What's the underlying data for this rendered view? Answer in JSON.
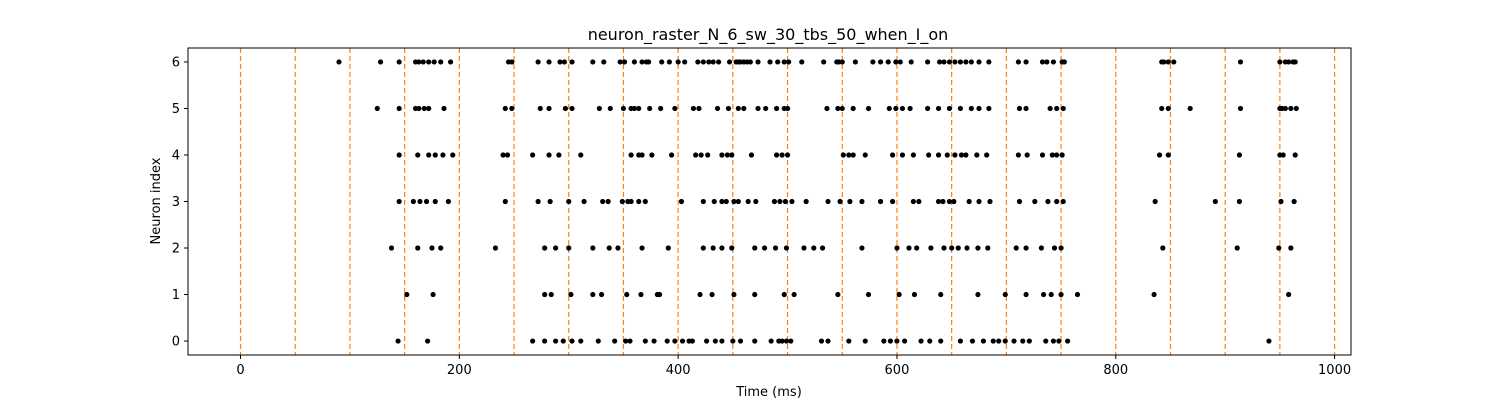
{
  "chart_data": {
    "type": "scatter",
    "title": "neuron_raster_N_6_sw_30_tbs_50_when_I_on",
    "xlabel": "Time (ms)",
    "ylabel": "Neuron index",
    "xlim": [
      -48,
      1015
    ],
    "ylim": [
      -0.3,
      6.3
    ],
    "xticks": [
      0,
      200,
      400,
      600,
      800,
      1000
    ],
    "yticks": [
      0,
      1,
      2,
      3,
      4,
      5,
      6
    ],
    "grid": false,
    "marker_color": "#000000",
    "vline_color": "#ff7f0e",
    "vlines": [
      0,
      50,
      100,
      150,
      200,
      250,
      300,
      350,
      400,
      450,
      500,
      550,
      600,
      650,
      700,
      750,
      800,
      850,
      900,
      950,
      1000
    ],
    "spikes": [
      {
        "neuron": 6,
        "times": [
          90,
          128,
          145,
          160,
          163,
          167,
          172,
          177,
          183,
          192,
          245,
          248,
          272,
          282,
          292,
          296,
          303,
          322,
          332,
          347,
          351,
          360,
          367,
          371,
          373,
          385,
          392,
          400,
          406,
          418,
          423,
          428,
          432,
          437,
          447,
          453,
          455,
          457,
          460,
          463,
          466,
          473,
          484,
          491,
          497,
          501,
          513,
          533,
          545,
          547,
          550,
          562,
          578,
          585,
          592,
          599,
          603,
          613,
          628,
          639,
          643,
          648,
          653,
          658,
          663,
          668,
          675,
          684,
          711,
          718,
          733,
          737,
          743,
          751,
          753,
          842,
          844,
          848,
          853,
          914,
          950,
          955,
          958,
          962,
          964
        ]
      },
      {
        "neuron": 5,
        "times": [
          125,
          145,
          160,
          163,
          168,
          172,
          186,
          242,
          248,
          274,
          282,
          297,
          303,
          328,
          338,
          350,
          357,
          360,
          364,
          374,
          384,
          397,
          414,
          419,
          436,
          446,
          455,
          460,
          473,
          480,
          490,
          497,
          500,
          536,
          546,
          550,
          560,
          574,
          593,
          599,
          605,
          612,
          628,
          638,
          648,
          658,
          668,
          675,
          684,
          712,
          718,
          740,
          746,
          752,
          842,
          848,
          868,
          914,
          950,
          952,
          955,
          960,
          965
        ]
      },
      {
        "neuron": 4,
        "times": [
          145,
          162,
          172,
          178,
          185,
          194,
          240,
          244,
          267,
          282,
          291,
          311,
          357,
          364,
          367,
          376,
          394,
          416,
          421,
          427,
          440,
          445,
          449,
          467,
          490,
          495,
          500,
          551,
          556,
          560,
          571,
          596,
          605,
          615,
          629,
          638,
          646,
          653,
          659,
          663,
          673,
          682,
          711,
          719,
          733,
          742,
          746,
          751,
          840,
          848,
          913,
          950,
          953,
          964
        ]
      },
      {
        "neuron": 3,
        "times": [
          145,
          158,
          164,
          170,
          178,
          190,
          242,
          272,
          283,
          300,
          314,
          331,
          336,
          349,
          354,
          357,
          364,
          370,
          403,
          423,
          433,
          440,
          444,
          451,
          455,
          464,
          471,
          488,
          493,
          498,
          504,
          517,
          537,
          548,
          557,
          568,
          585,
          596,
          615,
          620,
          638,
          642,
          648,
          652,
          666,
          675,
          685,
          712,
          726,
          738,
          746,
          752,
          836,
          891,
          913,
          951,
          963
        ]
      },
      {
        "neuron": 2,
        "times": [
          138,
          162,
          175,
          183,
          233,
          278,
          288,
          300,
          322,
          337,
          345,
          367,
          391,
          423,
          432,
          440,
          449,
          470,
          479,
          489,
          499,
          515,
          524,
          532,
          568,
          600,
          611,
          618,
          631,
          643,
          650,
          656,
          664,
          674,
          683,
          709,
          718,
          732,
          744,
          750,
          843,
          911,
          949,
          960
        ]
      },
      {
        "neuron": 1,
        "times": [
          152,
          176,
          278,
          284,
          302,
          322,
          330,
          353,
          366,
          381,
          383,
          420,
          431,
          451,
          470,
          497,
          506,
          546,
          574,
          602,
          616,
          640,
          674,
          699,
          718,
          734,
          741,
          750,
          765,
          835,
          958
        ]
      },
      {
        "neuron": 0,
        "times": [
          144,
          171,
          267,
          278,
          288,
          295,
          303,
          311,
          327,
          342,
          352,
          356,
          370,
          378,
          390,
          397,
          404,
          410,
          413,
          426,
          434,
          440,
          450,
          457,
          470,
          485,
          492,
          495,
          499,
          503,
          531,
          537,
          556,
          571,
          588,
          594,
          600,
          607,
          622,
          630,
          640,
          658,
          669,
          679,
          688,
          693,
          699,
          707,
          715,
          721,
          736,
          743,
          748,
          756,
          940
        ]
      }
    ]
  }
}
